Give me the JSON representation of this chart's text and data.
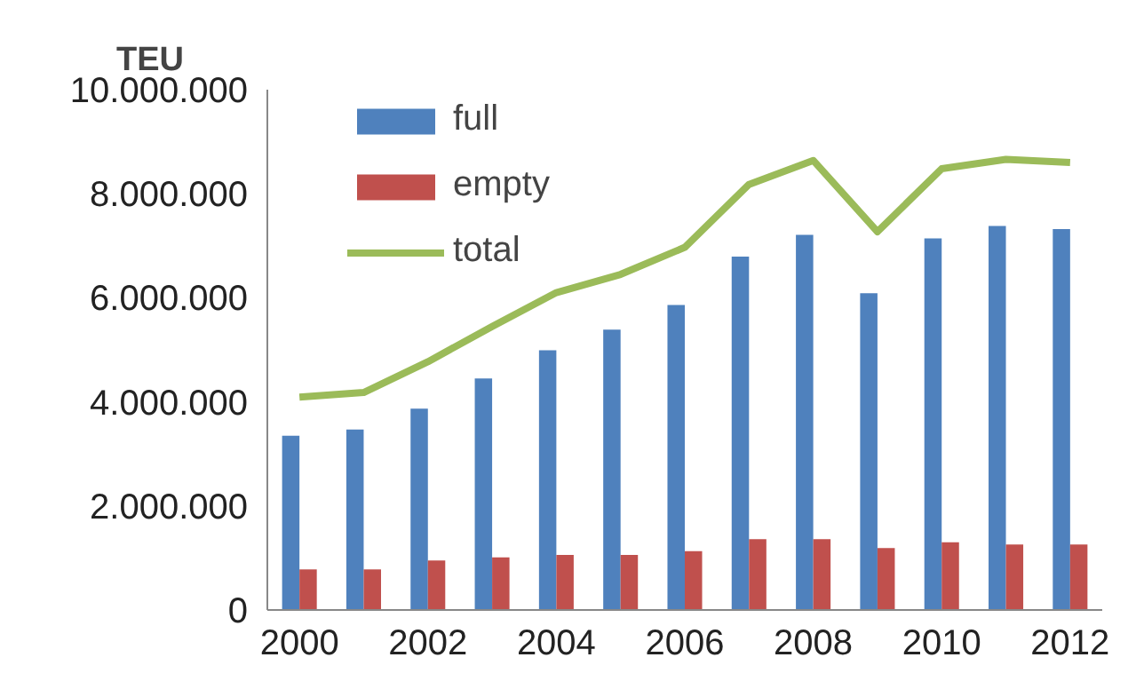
{
  "chart_data": {
    "type": "bar",
    "ylabel": "TEU",
    "x": [
      2000,
      2001,
      2002,
      2003,
      2004,
      2005,
      2006,
      2007,
      2008,
      2009,
      2010,
      2011,
      2012
    ],
    "series": [
      {
        "name": "full",
        "color": "#4f81bd",
        "values": [
          3350000,
          3470000,
          3870000,
          4450000,
          4990000,
          5390000,
          5860000,
          6790000,
          7210000,
          6090000,
          7140000,
          7380000,
          7320000
        ]
      },
      {
        "name": "empty",
        "color": "#c0504d",
        "values": [
          780000,
          780000,
          950000,
          1010000,
          1060000,
          1060000,
          1130000,
          1360000,
          1360000,
          1190000,
          1300000,
          1260000,
          1260000
        ]
      },
      {
        "name": "total",
        "type": "line",
        "color": "#9bbb59",
        "values": [
          4090000,
          4180000,
          4770000,
          5450000,
          6100000,
          6450000,
          6970000,
          8180000,
          8640000,
          7270000,
          8480000,
          8660000,
          8600000
        ]
      }
    ],
    "xlim": [
      1999.5,
      2012.5
    ],
    "xticks": [
      2000,
      2002,
      2004,
      2006,
      2008,
      2010,
      2012
    ],
    "ylim": [
      0,
      10000000
    ],
    "yticks": [
      {
        "value": 0,
        "label": "0"
      },
      {
        "value": 2000000,
        "label": "2.000.000"
      },
      {
        "value": 4000000,
        "label": "4.000.000"
      },
      {
        "value": 6000000,
        "label": "6.000.000"
      },
      {
        "value": 8000000,
        "label": "8.000.000"
      },
      {
        "value": 10000000,
        "label": "10.000.000"
      }
    ],
    "grid": false,
    "legend": "top left",
    "line_style": "solid"
  }
}
